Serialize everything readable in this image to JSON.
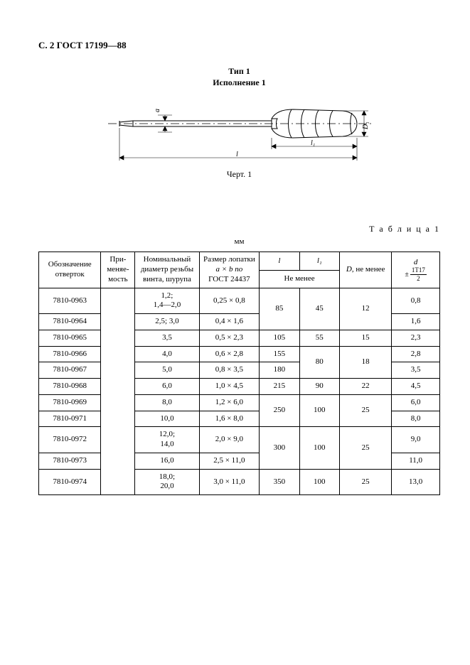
{
  "header": "С. 2 ГОСТ 17199—88",
  "figure": {
    "title_line1": "Тип 1",
    "title_line2": "Исполнение 1",
    "caption": "Черт. 1",
    "dims": {
      "a": "a",
      "l": "l",
      "l1": "l₁",
      "D1": "D₁"
    }
  },
  "table": {
    "label": "Т а б л и ц а  1",
    "units": "мм",
    "headers": {
      "desig": "Обозначение отверток",
      "appl": "При-меняе-мость",
      "diam": "Номинальный диаметр резьбы винта, шурупа",
      "blade_l1": "Размер лопатки",
      "blade_l2": "a × b по",
      "blade_l3": "ГОСТ 24437",
      "l": "l",
      "l1": "l₁",
      "sub_not_less": "Не менее",
      "D": "D, не менее",
      "d_top": "d",
      "d_tol_top": "1T17",
      "d_tol_bot": "2"
    },
    "rowset": [
      {
        "desig": "7810-0963",
        "diam": "1,2;\n1,4—2,0",
        "blade": "0,25 × 0,8",
        "l": "85",
        "l1": "45",
        "D": "12",
        "d": "0,8",
        "l_span": 2,
        "l1_span": 2,
        "D_span": 2
      },
      {
        "desig": "7810-0964",
        "diam": "2,5; 3,0",
        "blade": "0,4 × 1,6",
        "d": "1,6"
      },
      {
        "desig": "7810-0965",
        "diam": "3,5",
        "blade": "0,5 × 2,3",
        "l": "105",
        "l1": "55",
        "D": "15",
        "d": "2,3",
        "l_span": 1,
        "l1_span": 1,
        "D_span": 1
      },
      {
        "desig": "7810-0966",
        "diam": "4,0",
        "blade": "0,6 × 2,8",
        "l": "155",
        "l1": "80",
        "D": "18",
        "d": "2,8",
        "l_span": 1,
        "l1_span": 2,
        "D_span": 2
      },
      {
        "desig": "7810-0967",
        "diam": "5,0",
        "blade": "0,8 × 3,5",
        "l": "180",
        "d": "3,5",
        "l_span": 1
      },
      {
        "desig": "7810-0968",
        "diam": "6,0",
        "blade": "1,0 × 4,5",
        "l": "215",
        "l1": "90",
        "D": "22",
        "d": "4,5",
        "l_span": 1,
        "l1_span": 1,
        "D_span": 1
      },
      {
        "desig": "7810-0969",
        "diam": "8,0",
        "blade": "1,2 × 6,0",
        "l": "250",
        "l1": "100",
        "D": "25",
        "d": "6,0",
        "l_span": 2,
        "l1_span": 2,
        "D_span": 2
      },
      {
        "desig": "7810-0971",
        "diam": "10,0",
        "blade": "1,6 × 8,0",
        "d": "8,0"
      },
      {
        "desig": "7810-0972",
        "diam": "12,0;\n14,0",
        "blade": "2,0 × 9,0",
        "l": "300",
        "l1": "100",
        "D": "25",
        "d": "9,0",
        "l_span": 2,
        "l1_span": 2,
        "D_span": 2
      },
      {
        "desig": "7810-0973",
        "diam": "16,0",
        "blade": "2,5 × 11,0",
        "d": "11,0"
      },
      {
        "desig": "7810-0974",
        "diam": "18,0;\n20,0",
        "blade": "3,0 × 11,0",
        "l": "350",
        "l1": "100",
        "D": "25",
        "d": "13,0",
        "l_span": 1,
        "l1_span": 1,
        "D_span": 1
      }
    ],
    "appl_rowspan": 11
  }
}
